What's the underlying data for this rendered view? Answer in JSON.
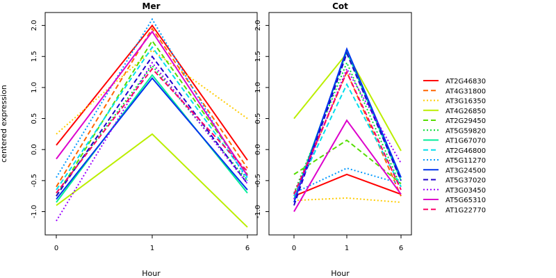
{
  "chart_data": {
    "type": "line",
    "ylabel": "centered expression",
    "xlabel": "Hour",
    "x_ticks": [
      "0",
      "1",
      "6"
    ],
    "y_ticks": [
      "-1.0",
      "-0.5",
      "0.0",
      "0.5",
      "1.0",
      "1.5",
      "2.0"
    ],
    "ylim": [
      -1.25,
      2.1
    ],
    "grid": false,
    "legend_position": "right",
    "series": [
      {
        "name": "AT2G46830",
        "color": "#ff0000",
        "dash": "solid"
      },
      {
        "name": "AT4G31800",
        "color": "#ff6600",
        "dash": "dashed"
      },
      {
        "name": "AT3G16350",
        "color": "#ffcc00",
        "dash": "dotted"
      },
      {
        "name": "AT4G26850",
        "color": "#bbee00",
        "dash": "solid"
      },
      {
        "name": "AT2G29450",
        "color": "#55dd00",
        "dash": "dashed"
      },
      {
        "name": "AT5G59820",
        "color": "#00dd33",
        "dash": "dotted"
      },
      {
        "name": "AT1G67070",
        "color": "#00ee99",
        "dash": "solid"
      },
      {
        "name": "AT2G46800",
        "color": "#00ddee",
        "dash": "dashed"
      },
      {
        "name": "AT5G11270",
        "color": "#0099ff",
        "dash": "dotted"
      },
      {
        "name": "AT3G24500",
        "color": "#0033ee",
        "dash": "solid"
      },
      {
        "name": "AT5G37020",
        "color": "#2200cc",
        "dash": "dashed"
      },
      {
        "name": "AT3G03450",
        "color": "#9900ff",
        "dash": "dotted"
      },
      {
        "name": "AT5G65310",
        "color": "#dd00cc",
        "dash": "solid"
      },
      {
        "name": "AT1G22770",
        "color": "#ff0066",
        "dash": "dashed"
      }
    ],
    "panels": [
      {
        "title": "Mer",
        "values": [
          [
            0.07,
            2.0,
            -0.17
          ],
          [
            -0.6,
            1.95,
            -0.3
          ],
          [
            0.25,
            1.6,
            0.5
          ],
          [
            -0.9,
            0.25,
            -1.25
          ],
          [
            -0.75,
            1.75,
            -0.4
          ],
          [
            -0.7,
            1.35,
            -0.5
          ],
          [
            -0.85,
            1.2,
            -0.7
          ],
          [
            -0.65,
            1.65,
            -0.45
          ],
          [
            -0.45,
            2.1,
            -0.5
          ],
          [
            -0.8,
            1.15,
            -0.65
          ],
          [
            -0.75,
            1.5,
            -0.55
          ],
          [
            -1.15,
            1.4,
            -0.55
          ],
          [
            -0.15,
            1.9,
            -0.42
          ],
          [
            -0.7,
            1.3,
            -0.35
          ]
        ]
      },
      {
        "title": "Cot",
        "values": [
          [
            -0.75,
            -0.4,
            -0.72
          ],
          [
            -0.75,
            1.25,
            -0.75
          ],
          [
            -0.82,
            -0.78,
            -0.85
          ],
          [
            0.5,
            1.55,
            -0.02
          ],
          [
            -0.4,
            0.15,
            -0.55
          ],
          [
            -0.7,
            1.4,
            -0.6
          ],
          [
            -0.8,
            1.58,
            -0.5
          ],
          [
            -0.75,
            1.05,
            -0.6
          ],
          [
            -0.7,
            -0.3,
            -0.55
          ],
          [
            -0.85,
            1.62,
            -0.45
          ],
          [
            -0.9,
            1.55,
            -0.5
          ],
          [
            -0.8,
            1.3,
            -0.22
          ],
          [
            -1.0,
            0.47,
            -0.72
          ],
          [
            -0.72,
            1.25,
            -0.65
          ]
        ]
      }
    ]
  }
}
